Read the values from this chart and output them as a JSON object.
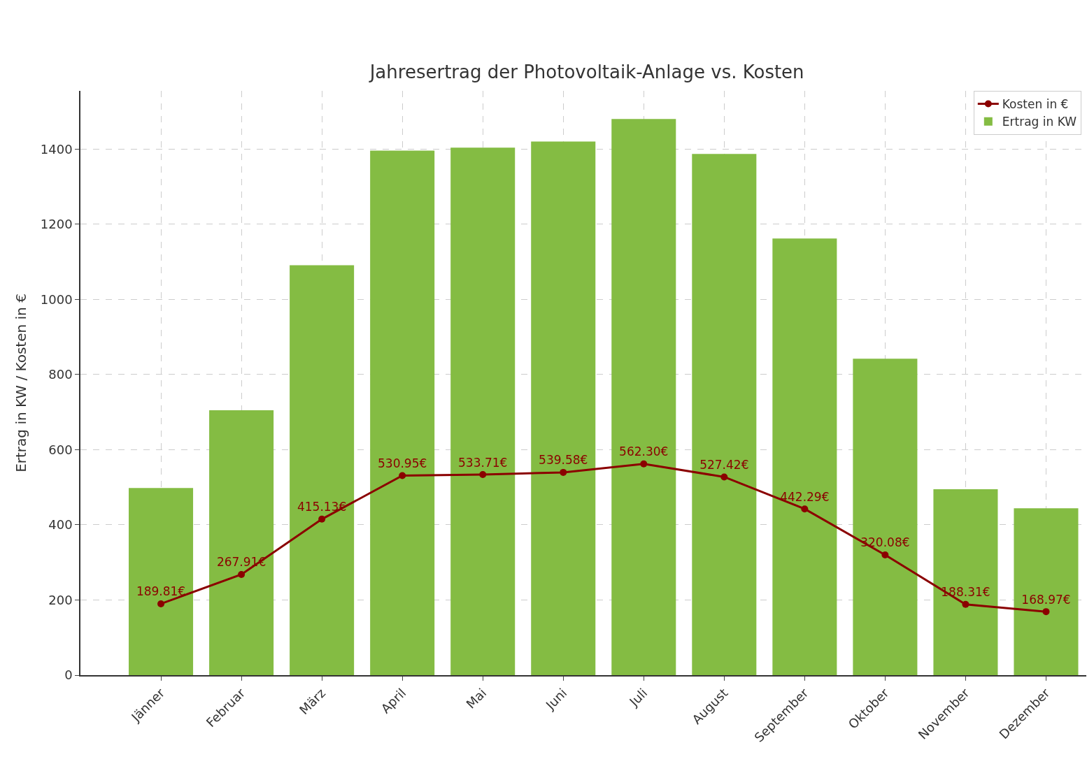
{
  "chart_data": {
    "type": "bar",
    "title": "Jahresertrag der Photovoltaik-Anlage vs. Kosten",
    "ylabel": "Ertrag in KW / Kosten in €",
    "categories": [
      "Jänner",
      "Februar",
      "März",
      "April",
      "Mai",
      "Juni",
      "Juli",
      "August",
      "September",
      "Oktober",
      "November",
      "Dezember"
    ],
    "series": [
      {
        "name": "Kosten in €",
        "type": "line",
        "color": "#8b0000",
        "marker": "circle",
        "line_style": "solid",
        "values": [
          189.81,
          267.91,
          415.13,
          530.95,
          533.71,
          539.58,
          562.3,
          527.42,
          442.29,
          320.08,
          188.31,
          168.97
        ],
        "value_labels": [
          "189.81€",
          "267.91€",
          "415.13€",
          "530.95€",
          "533.71€",
          "539.58€",
          "562.30€",
          "527.42€",
          "442.29€",
          "320.08€",
          "188.31€",
          "168.97€"
        ]
      },
      {
        "name": "Ertrag in KW",
        "color": "#84bc43",
        "values": [
          498,
          705,
          1091,
          1396,
          1404,
          1420,
          1480,
          1387,
          1162,
          842,
          495,
          444
        ]
      }
    ],
    "ylim": [
      0,
      1555
    ],
    "yticks": [
      0,
      200,
      400,
      600,
      800,
      1000,
      1200,
      1400
    ],
    "grid": true,
    "legend": "top right"
  }
}
